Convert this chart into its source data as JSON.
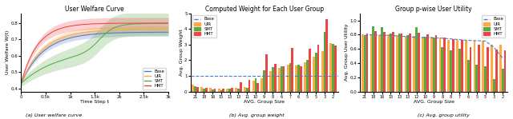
{
  "fig1": {
    "title": "User Welfare Curve",
    "xlabel": "Time Step t",
    "ylabel": "User Welfare W(t)",
    "xlim": [
      0,
      3000
    ],
    "ylim": [
      0.38,
      0.86
    ],
    "xticks": [
      0,
      500,
      1000,
      1500,
      2000,
      2500,
      3000
    ],
    "xticklabels": [
      "0",
      "0.5k",
      "1k",
      "1.5k",
      "2k",
      "2.5k",
      "3k"
    ],
    "legend_labels": [
      "Base",
      "UIR",
      "SMT",
      "HMT"
    ],
    "legend_colors": [
      "#5577CC",
      "#FFAA44",
      "#55AA44",
      "#EE4444"
    ]
  },
  "fig2": {
    "title": "Computed Weight for Each User Group",
    "xlabel": "AVG. Group Size",
    "ylabel": "Avg. Group Weight",
    "ylim": [
      0,
      5.0
    ],
    "yticks": [
      0,
      1,
      2,
      3,
      4,
      5
    ],
    "hline": 1.0,
    "groups": [
      "21",
      "18",
      "16",
      "15",
      "13",
      "13",
      "11",
      "10",
      "9",
      "8",
      "6",
      "7",
      "6",
      "5",
      "5",
      "3",
      "2"
    ],
    "UIR": [
      0.45,
      0.28,
      0.22,
      0.18,
      0.2,
      0.25,
      0.3,
      0.68,
      0.85,
      1.3,
      1.5,
      1.7,
      1.65,
      1.85,
      2.25,
      2.6,
      3.1
    ],
    "SMT": [
      0.32,
      0.18,
      0.13,
      0.1,
      0.16,
      0.2,
      0.22,
      0.85,
      1.38,
      1.58,
      1.63,
      1.82,
      1.7,
      2.0,
      2.5,
      3.82,
      3.02
    ],
    "HMT": [
      0.28,
      0.22,
      0.2,
      0.18,
      0.22,
      0.58,
      0.72,
      0.52,
      2.38,
      1.78,
      1.62,
      2.78,
      1.62,
      2.72,
      2.98,
      4.62,
      2.92
    ],
    "legend_labels": [
      "Base",
      "UIR",
      "SMT",
      "HMT"
    ],
    "legend_colors": [
      "#5577CC",
      "#FFAA44",
      "#55AA44",
      "#EE4444"
    ]
  },
  "fig3": {
    "title": "Group p-wise User Utility",
    "xlabel": "AVG. Group Size",
    "ylabel": "Avg. Group User Utility",
    "ylim": [
      0.0,
      1.1
    ],
    "yticks": [
      0.0,
      0.2,
      0.4,
      0.6,
      0.8,
      1.0
    ],
    "groups": [
      "21",
      "18",
      "16",
      "15",
      "13",
      "13",
      "12",
      "10",
      "9",
      "8",
      "8",
      "7",
      "6",
      "5",
      "5",
      "3",
      "2"
    ],
    "Base_line": [
      0.79,
      0.8,
      0.79,
      0.79,
      0.78,
      0.77,
      0.76,
      0.76,
      0.755,
      0.75,
      0.74,
      0.73,
      0.72,
      0.715,
      0.71,
      0.62,
      0.47
    ],
    "UIR": [
      0.8,
      0.81,
      0.79,
      0.8,
      0.79,
      0.77,
      0.78,
      0.775,
      0.77,
      0.76,
      0.73,
      0.725,
      0.72,
      0.715,
      0.72,
      0.655,
      0.655
    ],
    "SMT": [
      0.79,
      0.92,
      0.91,
      0.82,
      0.82,
      0.79,
      0.91,
      0.77,
      0.76,
      0.62,
      0.58,
      0.6,
      0.44,
      0.38,
      0.35,
      0.18,
      0.32
    ],
    "HMT": [
      0.82,
      0.855,
      0.84,
      0.84,
      0.82,
      0.82,
      0.83,
      0.81,
      0.79,
      0.755,
      0.74,
      0.73,
      0.62,
      0.655,
      0.62,
      0.595,
      0.58
    ],
    "legend_labels": [
      "Base",
      "UIR",
      "SMT",
      "HMT"
    ],
    "legend_colors": [
      "#5577CC",
      "#FFAA44",
      "#55AA44",
      "#EE4444"
    ]
  },
  "captions": [
    "(a) User welfare curve",
    "(b) Avg. group weight",
    "(c) Avg. group utility"
  ]
}
